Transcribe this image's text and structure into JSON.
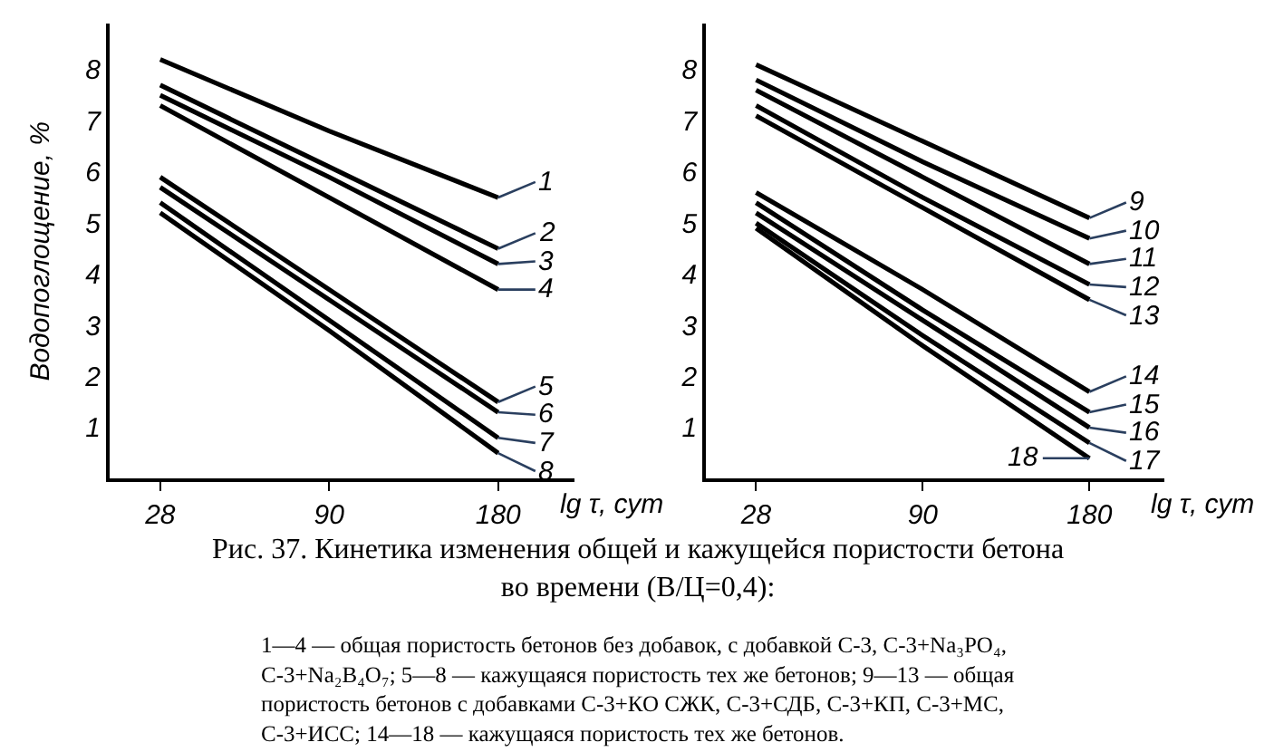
{
  "chart_data": [
    {
      "type": "line",
      "title": "Рис. 37. Кинетика изменения общей и кажущейся пористости бетона\nво времени (В/Ц=0,4):",
      "annotations": [
        "1—4 — общая пористость бетонов без добавок, с добавкой С-3, С-3+Na₃PO₄,\nС-3+Na₂B₄O₇; 5—8 — кажущаяся пористость тех же бетонов; 9—13 — общая\nпористость бетонов с добавками С-3+КО СЖК, С-3+СДБ, С-3+КП, С-3+МС,\nС-3+ИСС; 14—18 — кажущаяся пористость тех же бетонов."
      ],
      "xlabel": "lg τ, сут",
      "ylabel": "Водопоглощение, %",
      "categories": [
        "28",
        "90",
        "180"
      ],
      "ylim": [
        0,
        8.9
      ],
      "yticks": [
        1,
        2,
        3,
        4,
        5,
        6,
        7,
        8
      ],
      "marker": "none",
      "line_style": "solid",
      "series": [
        {
          "name": "1",
          "color": "#000000",
          "values": [
            8.2,
            6.8,
            5.5
          ]
        },
        {
          "name": "2",
          "color": "#000000",
          "values": [
            7.7,
            6.1,
            4.5
          ]
        },
        {
          "name": "3",
          "color": "#000000",
          "values": [
            7.5,
            5.9,
            4.2
          ]
        },
        {
          "name": "4",
          "color": "#000000",
          "values": [
            7.3,
            5.5,
            3.7
          ]
        },
        {
          "name": "5",
          "color": "#000000",
          "values": [
            5.9,
            3.7,
            1.5
          ]
        },
        {
          "name": "6",
          "color": "#000000",
          "values": [
            5.7,
            3.5,
            1.3
          ]
        },
        {
          "name": "7",
          "color": "#000000",
          "values": [
            5.4,
            3.1,
            0.8
          ]
        },
        {
          "name": "8",
          "color": "#000000",
          "values": [
            5.2,
            2.9,
            0.5
          ]
        }
      ]
    },
    {
      "type": "line",
      "xlabel": "lg τ, сут",
      "categories": [
        "28",
        "90",
        "180"
      ],
      "ylim": [
        0,
        8.9
      ],
      "yticks": [
        1,
        2,
        3,
        4,
        5,
        6,
        7,
        8
      ],
      "marker": "none",
      "line_style": "solid",
      "series": [
        {
          "name": "9",
          "color": "#000000",
          "values": [
            8.1,
            6.6,
            5.1
          ]
        },
        {
          "name": "10",
          "color": "#000000",
          "values": [
            7.8,
            6.2,
            4.7
          ]
        },
        {
          "name": "11",
          "color": "#000000",
          "values": [
            7.6,
            5.9,
            4.2
          ]
        },
        {
          "name": "12",
          "color": "#000000",
          "values": [
            7.3,
            5.5,
            3.8
          ]
        },
        {
          "name": "13",
          "color": "#000000",
          "values": [
            7.1,
            5.3,
            3.5
          ]
        },
        {
          "name": "14",
          "color": "#000000",
          "values": [
            5.6,
            3.7,
            1.7
          ]
        },
        {
          "name": "15",
          "color": "#000000",
          "values": [
            5.4,
            3.3,
            1.3
          ]
        },
        {
          "name": "16",
          "color": "#000000",
          "values": [
            5.2,
            3.1,
            1.0
          ]
        },
        {
          "name": "17",
          "color": "#000000",
          "values": [
            5.0,
            2.8,
            0.7
          ]
        },
        {
          "name": "18",
          "color": "#000000",
          "values": [
            4.9,
            2.6,
            0.4
          ]
        }
      ]
    }
  ]
}
